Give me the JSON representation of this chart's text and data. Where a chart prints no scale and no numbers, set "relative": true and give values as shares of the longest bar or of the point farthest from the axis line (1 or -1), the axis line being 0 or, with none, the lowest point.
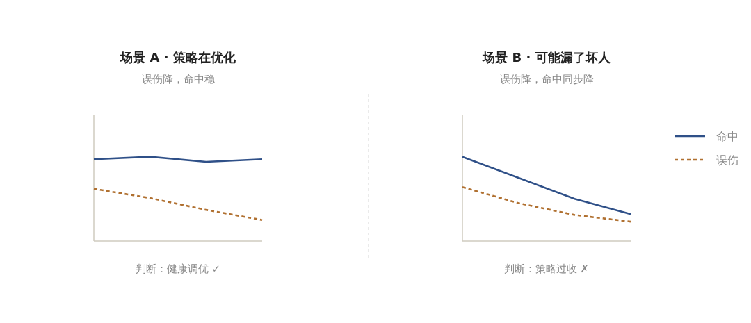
{
  "chart_data": [
    {
      "type": "line",
      "title": "场景 A · 策略在优化",
      "subtitle": "误伤降，命中稳",
      "relative": true,
      "categories": [
        null,
        null,
        null,
        null
      ],
      "series": [
        {
          "color": "#2f5088",
          "line_style": "solid",
          "values": [
            0.97,
            1,
            0.94,
            0.97
          ]
        },
        {
          "color": "#b07030",
          "line_style": "dashed",
          "values": [
            0.62,
            0.51,
            0.37,
            0.25
          ]
        }
      ],
      "annotations": [
        "判断：健康调优 ✓"
      ]
    },
    {
      "type": "line",
      "title": "场景 B · 可能漏了坏人",
      "subtitle": "误伤降，命中同步降",
      "relative": true,
      "categories": [
        null,
        null,
        null,
        null
      ],
      "legend": "right",
      "series": [
        {
          "name": "命中",
          "color": "#2f5088",
          "line_style": "solid",
          "values": [
            1,
            0.75,
            0.5,
            0.32
          ]
        },
        {
          "name": "误伤",
          "color": "#b07030",
          "line_style": "dashed",
          "values": [
            0.64,
            0.45,
            0.31,
            0.23
          ]
        }
      ],
      "annotations": [
        "判断：策略过收 ✗"
      ]
    }
  ]
}
